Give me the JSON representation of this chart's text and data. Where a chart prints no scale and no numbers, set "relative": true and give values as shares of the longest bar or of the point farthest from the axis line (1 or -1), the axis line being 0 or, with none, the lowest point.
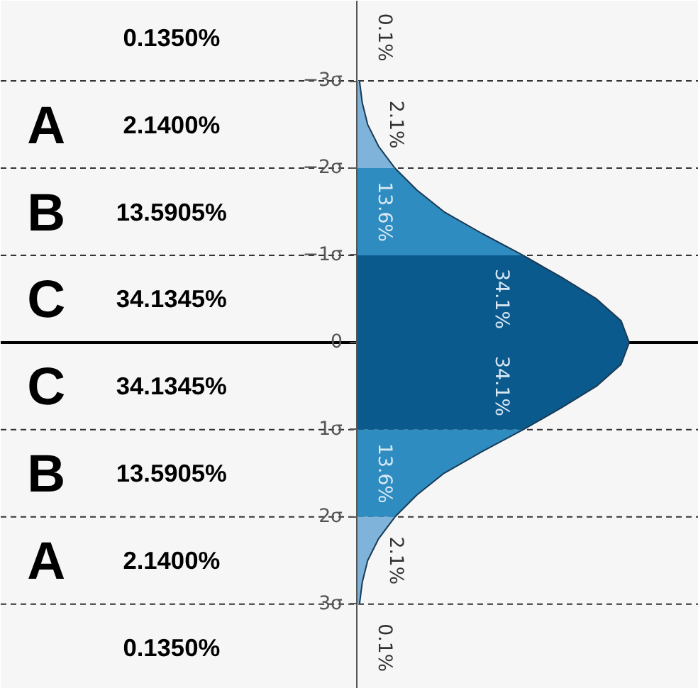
{
  "chart_data": {
    "type": "area",
    "orientation": "horizontal",
    "relative": true,
    "series": [
      {
        "color": "#7fb3d9",
        "x": [
          -3,
          -2.75,
          -2.5,
          -2.25,
          -2
        ],
        "values": [
          0.01,
          0.02,
          0.04,
          0.08,
          0.14
        ]
      },
      {
        "color": "#2e8cc1",
        "x": [
          -2,
          -1.75,
          -1.5,
          -1.25,
          -1
        ],
        "values": [
          0.14,
          0.22,
          0.32,
          0.46,
          0.61
        ]
      },
      {
        "color": "#0a5a8e",
        "x": [
          -1,
          -0.75,
          -0.5,
          -0.25,
          0
        ],
        "values": [
          0.61,
          0.75,
          0.88,
          0.97,
          1
        ]
      },
      {
        "color": "#0a5a8e",
        "x": [
          0,
          0.25,
          0.5,
          0.75,
          1
        ],
        "values": [
          1,
          0.97,
          0.88,
          0.75,
          0.61
        ]
      },
      {
        "color": "#2e8cc1",
        "x": [
          1,
          1.25,
          1.5,
          1.75,
          2
        ],
        "values": [
          0.61,
          0.46,
          0.32,
          0.22,
          0.14
        ]
      },
      {
        "color": "#7fb3d9",
        "x": [
          2,
          2.25,
          2.5,
          2.75,
          3
        ],
        "values": [
          0.14,
          0.08,
          0.04,
          0.02,
          0.01
        ]
      }
    ],
    "ylim": [
      3.97,
      -3.92
    ],
    "yticks": [
      {
        "value": -3,
        "label": "−3σ"
      },
      {
        "value": -2,
        "label": "−2σ"
      },
      {
        "value": -1,
        "label": "−1σ"
      },
      0,
      {
        "value": 1,
        "label": "1σ"
      },
      {
        "value": 2,
        "label": "2σ"
      },
      {
        "value": 3,
        "label": "3σ"
      }
    ],
    "ref_lines": [
      {
        "axis": "y",
        "value": 0,
        "color": "#000000",
        "line_style": "solid"
      },
      {
        "axis": "y",
        "value": -3,
        "color": "#333333",
        "line_style": "dashed"
      },
      {
        "axis": "y",
        "value": -2,
        "color": "#333333",
        "line_style": "dashed"
      },
      {
        "axis": "y",
        "value": -1,
        "color": "#333333",
        "line_style": "dashed"
      },
      {
        "axis": "y",
        "value": 1,
        "color": "#333333",
        "line_style": "dashed"
      },
      {
        "axis": "y",
        "value": 2,
        "color": "#333333",
        "line_style": "dashed"
      },
      {
        "axis": "y",
        "value": 3,
        "color": "#333333",
        "line_style": "dashed"
      }
    ],
    "annotations": [
      "0.1350%",
      "A",
      "2.1400%",
      "B",
      "13.5905%",
      "C",
      "34.1345%",
      "C",
      "34.1345%",
      "B",
      "13.5905%",
      "A",
      "2.1400%",
      "0.1350%",
      "0.1%",
      "2.1%",
      "13.6%",
      "34.1%",
      "34.1%",
      "13.6%",
      "2.1%",
      "0.1%"
    ]
  }
}
